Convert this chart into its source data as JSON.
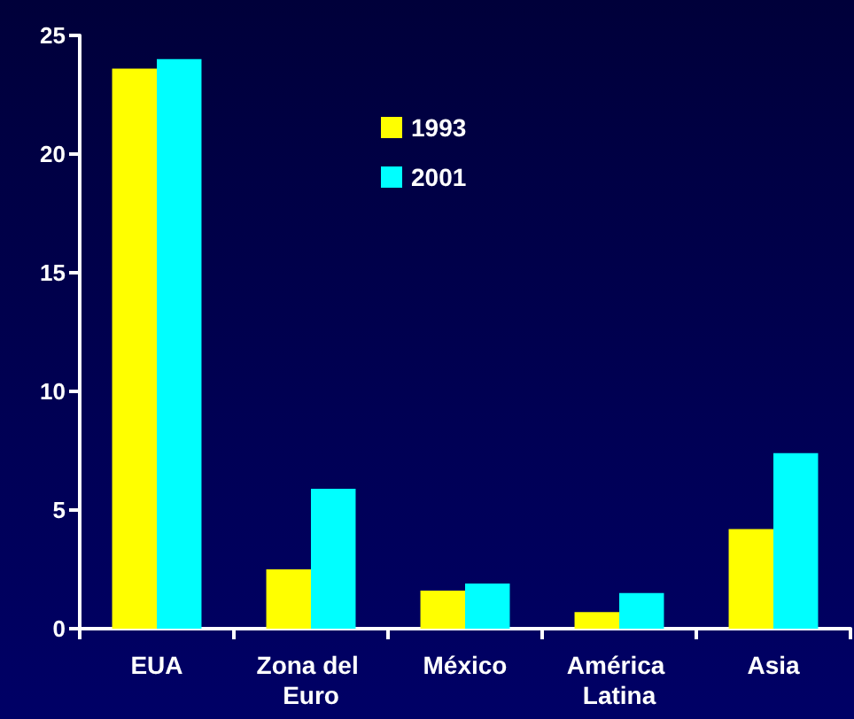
{
  "chart_data": {
    "type": "bar",
    "categories": [
      "EUA",
      "Zona del Euro",
      "México",
      "América Latina",
      "Asia"
    ],
    "series": [
      {
        "name": "1993",
        "color": "#ffff00",
        "values": [
          23.6,
          2.5,
          1.6,
          0.7,
          4.2
        ]
      },
      {
        "name": "2001",
        "color": "#00ffff",
        "values": [
          24.0,
          5.9,
          1.9,
          1.5,
          7.4
        ]
      }
    ],
    "ylim": [
      0,
      25
    ],
    "yticks": [
      0,
      5,
      10,
      15,
      20,
      25
    ],
    "grid": false,
    "legend": "top"
  }
}
